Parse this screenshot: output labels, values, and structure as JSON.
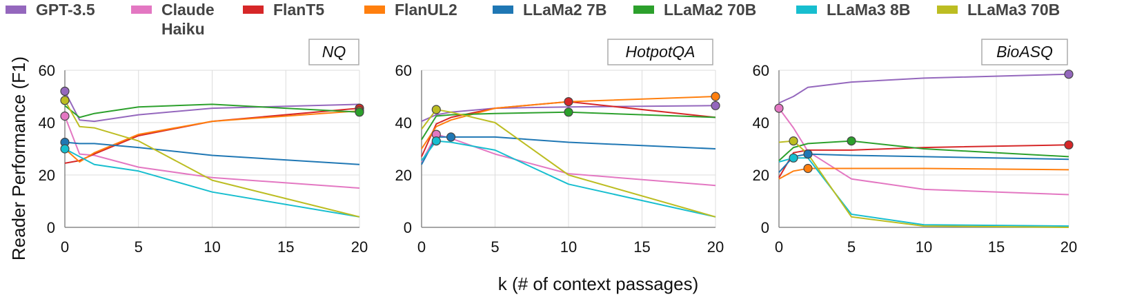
{
  "legend": [
    {
      "name": "GPT-3.5",
      "color": "#9467bd"
    },
    {
      "name": "Claude Haiku",
      "color": "#e377c2"
    },
    {
      "name": "FlanT5",
      "color": "#d62728"
    },
    {
      "name": "FlanUL2",
      "color": "#ff7f0e"
    },
    {
      "name": "LLaMa2 7B",
      "color": "#1f77b4"
    },
    {
      "name": "LLaMa2 70B",
      "color": "#2ca02c"
    },
    {
      "name": "LLaMa3 8B",
      "color": "#17becf"
    },
    {
      "name": "LLaMa3 70B",
      "color": "#bcbd22"
    }
  ],
  "shared": {
    "ylabel": "Reader Performance (F1)",
    "xlabel": "k (# of context passages)"
  },
  "chart_data": [
    {
      "type": "line",
      "title": "NQ",
      "xlim": [
        0,
        20
      ],
      "ylim": [
        0,
        60
      ],
      "xticks": [
        0,
        5,
        10,
        15,
        20
      ],
      "yticks": [
        0,
        20,
        40,
        60
      ],
      "series": [
        {
          "name": "GPT-3.5",
          "x": [
            0,
            1,
            2,
            5,
            10,
            20
          ],
          "y": [
            52,
            41,
            40.5,
            43,
            45.5,
            47
          ],
          "marker_x": 0,
          "marker_y": 52
        },
        {
          "name": "Claude Haiku",
          "x": [
            0,
            1,
            2,
            5,
            10,
            20
          ],
          "y": [
            42.5,
            28,
            27.5,
            23,
            19,
            15
          ],
          "marker_x": 0,
          "marker_y": 42.5
        },
        {
          "name": "FlanT5",
          "x": [
            0,
            1,
            2,
            5,
            10,
            20
          ],
          "y": [
            24.5,
            25.5,
            28,
            35,
            40.5,
            45.5
          ],
          "marker_x": 20,
          "marker_y": 45.5
        },
        {
          "name": "FlanUL2",
          "x": [
            0,
            1,
            2,
            5,
            10,
            20
          ],
          "y": [
            30,
            25,
            28.5,
            35.5,
            40.5,
            44.5
          ],
          "marker_x": 20,
          "marker_y": 44.5
        },
        {
          "name": "LLaMa2 7B",
          "x": [
            0,
            1,
            2,
            5,
            10,
            20
          ],
          "y": [
            32.5,
            32,
            32,
            30.5,
            27.5,
            24
          ],
          "marker_x": 0,
          "marker_y": 32.5
        },
        {
          "name": "LLaMa2 70B",
          "x": [
            0,
            1,
            2,
            5,
            10,
            20
          ],
          "y": [
            46.5,
            42,
            43.5,
            46,
            47,
            44
          ],
          "marker_x": 20,
          "marker_y": 44
        },
        {
          "name": "LLaMa3 8B",
          "x": [
            0,
            1,
            2,
            5,
            10,
            20
          ],
          "y": [
            30,
            27,
            24,
            21.5,
            13.5,
            4
          ],
          "marker_x": 0,
          "marker_y": 30
        },
        {
          "name": "LLaMa3 70B",
          "x": [
            0,
            1,
            2,
            5,
            10,
            20
          ],
          "y": [
            48.5,
            38.5,
            38,
            33,
            18,
            4
          ],
          "marker_x": 0,
          "marker_y": 48.5
        }
      ]
    },
    {
      "type": "line",
      "title": "HotpotQA",
      "xlim": [
        0,
        20
      ],
      "ylim": [
        0,
        60
      ],
      "xticks": [
        0,
        5,
        10,
        15,
        20
      ],
      "yticks": [
        0,
        20,
        40,
        60
      ],
      "series": [
        {
          "name": "GPT-3.5",
          "x": [
            0,
            1,
            2,
            5,
            10,
            20
          ],
          "y": [
            40.5,
            43,
            44,
            45.5,
            46,
            46.5
          ],
          "marker_x": 20,
          "marker_y": 46.5
        },
        {
          "name": "Claude Haiku",
          "x": [
            0,
            1,
            2,
            5,
            10,
            20
          ],
          "y": [
            25,
            35.5,
            34,
            28,
            20.5,
            16
          ],
          "marker_x": 1,
          "marker_y": 35.5
        },
        {
          "name": "FlanT5",
          "x": [
            0,
            1,
            2,
            5,
            10,
            20
          ],
          "y": [
            27,
            39.5,
            42,
            45.5,
            48,
            42
          ],
          "marker_x": 10,
          "marker_y": 48
        },
        {
          "name": "FlanUL2",
          "x": [
            0,
            1,
            2,
            5,
            10,
            20
          ],
          "y": [
            30,
            38.5,
            41,
            45.5,
            48,
            50
          ],
          "marker_x": 20,
          "marker_y": 50
        },
        {
          "name": "LLaMa2 7B",
          "x": [
            0,
            1,
            2,
            5,
            10,
            20
          ],
          "y": [
            24,
            34.5,
            34.5,
            34.5,
            32.5,
            30
          ],
          "marker_x": 2,
          "marker_y": 34.5
        },
        {
          "name": "LLaMa2 70B",
          "x": [
            0,
            1,
            2,
            5,
            10,
            20
          ],
          "y": [
            33.5,
            42.5,
            43,
            43.5,
            44,
            42
          ],
          "marker_x": 10,
          "marker_y": 44
        },
        {
          "name": "LLaMa3 8B",
          "x": [
            0,
            1,
            2,
            5,
            10,
            20
          ],
          "y": [
            25.5,
            33,
            32.5,
            29.5,
            16.5,
            4
          ],
          "marker_x": 1,
          "marker_y": 33
        },
        {
          "name": "LLaMa3 70B",
          "x": [
            0,
            1,
            2,
            5,
            10,
            20
          ],
          "y": [
            37.5,
            45,
            44,
            40,
            20,
            4
          ],
          "marker_x": 1,
          "marker_y": 45
        }
      ]
    },
    {
      "type": "line",
      "title": "BioASQ",
      "xlim": [
        0,
        20
      ],
      "ylim": [
        0,
        60
      ],
      "xticks": [
        0,
        5,
        10,
        15,
        20
      ],
      "yticks": [
        0,
        20,
        40,
        60
      ],
      "series": [
        {
          "name": "GPT-3.5",
          "x": [
            0,
            1,
            2,
            5,
            10,
            20
          ],
          "y": [
            47.5,
            50,
            53.5,
            55.5,
            57,
            58.5
          ],
          "marker_x": 20,
          "marker_y": 58.5
        },
        {
          "name": "Claude Haiku",
          "x": [
            0,
            1,
            2,
            5,
            10,
            20
          ],
          "y": [
            45.5,
            38,
            29,
            18.5,
            14.5,
            12.5
          ],
          "marker_x": 0,
          "marker_y": 45.5
        },
        {
          "name": "FlanT5",
          "x": [
            0,
            1,
            2,
            5,
            10,
            20
          ],
          "y": [
            19,
            28.5,
            29.5,
            29.5,
            30.5,
            31.5
          ],
          "marker_x": 20,
          "marker_y": 31.5
        },
        {
          "name": "FlanUL2",
          "x": [
            0,
            1,
            2,
            5,
            10,
            20
          ],
          "y": [
            18.5,
            21.5,
            22.5,
            22.5,
            22.5,
            22
          ],
          "marker_x": 2,
          "marker_y": 22.5
        },
        {
          "name": "LLaMa2 7B",
          "x": [
            0,
            1,
            2,
            5,
            10,
            20
          ],
          "y": [
            21,
            27,
            28,
            27.5,
            27,
            26
          ],
          "marker_x": 2,
          "marker_y": 28
        },
        {
          "name": "LLaMa2 70B",
          "x": [
            0,
            1,
            2,
            5,
            10,
            20
          ],
          "y": [
            25.5,
            30.5,
            32,
            33,
            30,
            27
          ],
          "marker_x": 5,
          "marker_y": 33
        },
        {
          "name": "LLaMa3 8B",
          "x": [
            0,
            1,
            2,
            5,
            10,
            20
          ],
          "y": [
            25,
            26.5,
            26.5,
            5,
            1,
            0.5
          ],
          "marker_x": 1,
          "marker_y": 26.5
        },
        {
          "name": "LLaMa3 70B",
          "x": [
            0,
            1,
            2,
            5,
            10,
            20
          ],
          "y": [
            32.5,
            33,
            28,
            4,
            0.5,
            0
          ],
          "marker_x": 1,
          "marker_y": 33
        }
      ]
    }
  ]
}
